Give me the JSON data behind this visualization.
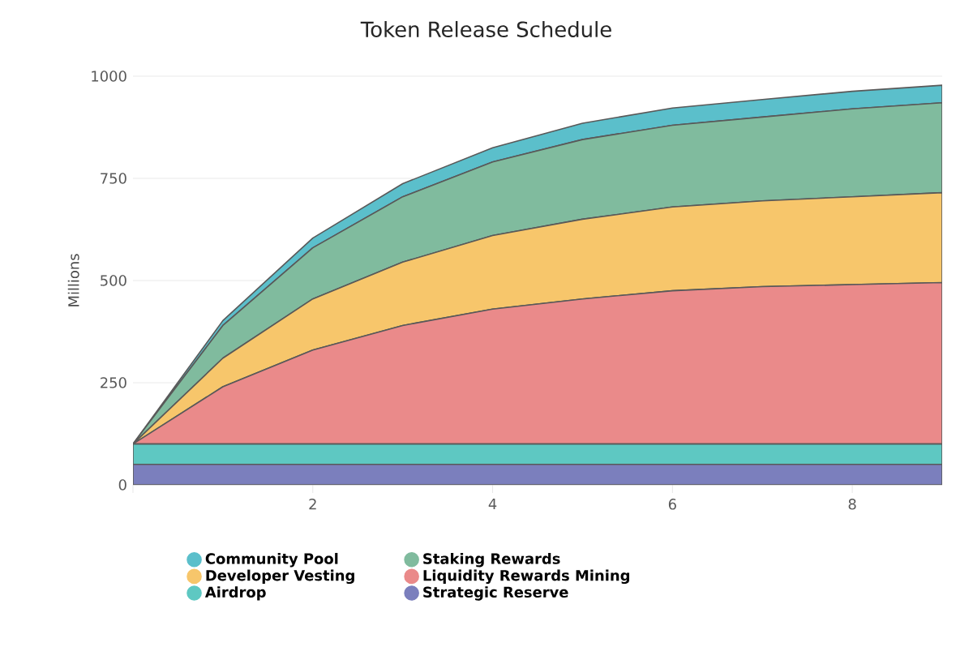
{
  "chart_data": {
    "type": "area",
    "title": "Token Release Schedule",
    "ylabel": "Millions",
    "stacked": true,
    "x": [
      0,
      1,
      2,
      3,
      4,
      5,
      6,
      7,
      8,
      9
    ],
    "xlim": [
      0,
      9
    ],
    "xticks": [
      {
        "value": 0,
        "label": null
      },
      2,
      4,
      6,
      8
    ],
    "ylim": [
      0,
      1000
    ],
    "yticks": [
      0,
      250,
      500,
      750,
      1000
    ],
    "grid": "y",
    "legend": "bottom",
    "marker": "none",
    "series": [
      {
        "name": "Strategic Reserve",
        "color": "#7b7fbd",
        "values": [
          50,
          50,
          50,
          50,
          50,
          50,
          50,
          50,
          50,
          50
        ]
      },
      {
        "name": "Airdrop",
        "color": "#5ec8c2",
        "values": [
          50,
          50,
          50,
          50,
          50,
          50,
          50,
          50,
          50,
          50
        ]
      },
      {
        "name": "Liquidity Rewards Mining",
        "color": "#ea8a8a",
        "values": [
          0,
          140,
          230,
          290,
          330,
          355,
          375,
          385,
          390,
          395
        ]
      },
      {
        "name": "Developer Vesting",
        "color": "#f7c66b",
        "values": [
          0,
          70,
          125,
          155,
          180,
          195,
          205,
          210,
          215,
          220
        ]
      },
      {
        "name": "Staking Rewards",
        "color": "#80bb9e",
        "values": [
          0,
          80,
          125,
          160,
          180,
          195,
          200,
          205,
          215,
          220
        ]
      },
      {
        "name": "Community Pool",
        "color": "#5bbfcb",
        "values": [
          0,
          12,
          24,
          32,
          35,
          40,
          42,
          43,
          43,
          43
        ]
      }
    ]
  }
}
